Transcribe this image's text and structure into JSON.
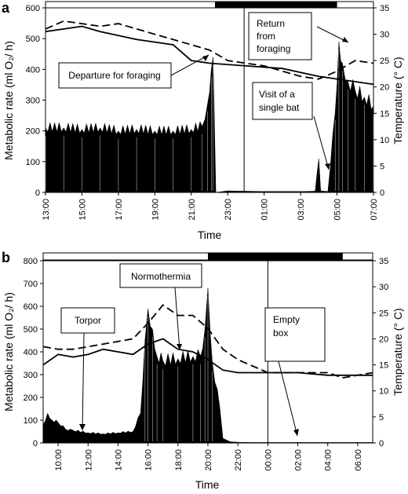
{
  "chart_data": [
    {
      "panel": "a",
      "type": "area",
      "xlabel": "Time",
      "ylabel_left": "Metabolic rate (ml O₂/ h)",
      "ylabel_right": "Temperature (° C)",
      "x_ticks": [
        "13:00",
        "15:00",
        "17:00",
        "19:00",
        "21:00",
        "23:00",
        "01:00",
        "03:00",
        "05:00",
        "07:00"
      ],
      "x_hours": [
        13,
        31
      ],
      "ylim_left": [
        0,
        600
      ],
      "yticks_left": [
        "0",
        "100",
        "200",
        "300",
        "400",
        "500",
        "600"
      ],
      "ylim_right": [
        0,
        35
      ],
      "yticks_right": [
        "0",
        "5",
        "10",
        "15",
        "20",
        "25",
        "30",
        "35"
      ],
      "dark_period": [
        22.3,
        29.0
      ],
      "marker_hour": 23.9,
      "metabolic_rate": [
        [
          13.0,
          210
        ],
        [
          14.0,
          210
        ],
        [
          15.0,
          205
        ],
        [
          16.0,
          210
        ],
        [
          17.0,
          200
        ],
        [
          18.0,
          205
        ],
        [
          19.0,
          200
        ],
        [
          20.0,
          200
        ],
        [
          21.0,
          205
        ],
        [
          21.6,
          215
        ],
        [
          21.9,
          290
        ],
        [
          22.1,
          400
        ],
        [
          22.2,
          440
        ],
        [
          22.35,
          0
        ],
        [
          23.0,
          5
        ],
        [
          24.0,
          4
        ],
        [
          25.0,
          3
        ],
        [
          26.0,
          3
        ],
        [
          27.0,
          3
        ],
        [
          27.8,
          4
        ],
        [
          27.9,
          60
        ],
        [
          28.0,
          110
        ],
        [
          28.1,
          5
        ],
        [
          28.5,
          3
        ],
        [
          28.9,
          260
        ],
        [
          29.1,
          490
        ],
        [
          29.3,
          420
        ],
        [
          29.6,
          360
        ],
        [
          30.0,
          330
        ],
        [
          30.5,
          310
        ],
        [
          31.0,
          280
        ]
      ],
      "series": [
        {
          "name": "",
          "style": "solid",
          "values": [
            [
              13,
              30.5
            ],
            [
              14,
              31
            ],
            [
              15,
              31.5
            ],
            [
              16,
              30.5
            ],
            [
              18,
              29
            ],
            [
              20,
              28
            ],
            [
              21,
              25
            ],
            [
              22,
              24.5
            ],
            [
              24,
              24
            ],
            [
              26,
              23.5
            ],
            [
              28,
              22
            ],
            [
              29,
              21.5
            ],
            [
              30,
              21
            ],
            [
              31,
              20.5
            ]
          ]
        },
        {
          "name": "",
          "style": "dashed",
          "values": [
            [
              13,
              31
            ],
            [
              14,
              32.5
            ],
            [
              15,
              32
            ],
            [
              16,
              31.5
            ],
            [
              17,
              32
            ],
            [
              19,
              30
            ],
            [
              21,
              28
            ],
            [
              22,
              27
            ],
            [
              23,
              25
            ],
            [
              24,
              24.5
            ],
            [
              25,
              24
            ],
            [
              27,
              22
            ],
            [
              28,
              21.5
            ],
            [
              29,
              23
            ],
            [
              30,
              25
            ],
            [
              31,
              24.5
            ]
          ]
        }
      ],
      "annotations": {
        "departure": "Departure for foraging",
        "return_line1": "Return",
        "return_line2": "from",
        "return_line3": "foraging",
        "visit_line1": "Visit of a",
        "visit_line2": "single bat"
      }
    },
    {
      "panel": "b",
      "type": "area",
      "xlabel": "Time",
      "ylabel_left": "Metabolic rate (ml O₂/ h)",
      "ylabel_right": "Temperature (° C)",
      "x_ticks": [
        "10:00",
        "12:00",
        "14:00",
        "16:00",
        "18:00",
        "20:00",
        "22:00",
        "00:00",
        "02:00",
        "04:00",
        "06:00"
      ],
      "x_hours": [
        9,
        31
      ],
      "ylim_left": [
        0,
        800
      ],
      "yticks_left": [
        "0",
        "100",
        "200",
        "300",
        "400",
        "500",
        "600",
        "700",
        "800"
      ],
      "ylim_right": [
        0,
        35
      ],
      "yticks_right": [
        "0",
        "5",
        "10",
        "15",
        "20",
        "25",
        "30",
        "35"
      ],
      "dark_period": [
        20.0,
        29.0
      ],
      "marker_hour": 24.0,
      "metabolic_rate": [
        [
          9.0,
          80
        ],
        [
          9.3,
          130
        ],
        [
          9.6,
          100
        ],
        [
          10.0,
          90
        ],
        [
          10.5,
          60
        ],
        [
          11.0,
          55
        ],
        [
          12.0,
          45
        ],
        [
          13.0,
          40
        ],
        [
          14.0,
          45
        ],
        [
          15.0,
          50
        ],
        [
          15.5,
          130
        ],
        [
          15.8,
          450
        ],
        [
          16.0,
          590
        ],
        [
          16.3,
          500
        ],
        [
          16.6,
          380
        ],
        [
          17.0,
          360
        ],
        [
          18.0,
          370
        ],
        [
          19.0,
          380
        ],
        [
          19.5,
          380
        ],
        [
          19.8,
          500
        ],
        [
          20.0,
          680
        ],
        [
          20.3,
          350
        ],
        [
          20.8,
          150
        ],
        [
          21.0,
          20
        ],
        [
          21.5,
          5
        ],
        [
          22.0,
          3
        ],
        [
          23.0,
          2
        ],
        [
          24.0,
          2
        ],
        [
          26.0,
          2
        ],
        [
          28.0,
          2
        ],
        [
          30.0,
          2
        ],
        [
          31.0,
          2
        ]
      ],
      "series": [
        {
          "name": "",
          "style": "solid",
          "values": [
            [
              9,
              15
            ],
            [
              10,
              17
            ],
            [
              11,
              16.5
            ],
            [
              12,
              17
            ],
            [
              13,
              18
            ],
            [
              14,
              17.5
            ],
            [
              15,
              17
            ],
            [
              16,
              19
            ],
            [
              17,
              20
            ],
            [
              18,
              18
            ],
            [
              19,
              17.5
            ],
            [
              20,
              16
            ],
            [
              21,
              14
            ],
            [
              22,
              13.5
            ],
            [
              24,
              13.5
            ],
            [
              26,
              13.5
            ],
            [
              28,
              13
            ],
            [
              30,
              13
            ],
            [
              31,
              13
            ]
          ]
        },
        {
          "name": "",
          "style": "dashed",
          "values": [
            [
              9,
              18.5
            ],
            [
              10,
              18
            ],
            [
              11,
              18
            ],
            [
              12,
              18.5
            ],
            [
              13,
              19
            ],
            [
              14,
              19.5
            ],
            [
              15,
              20
            ],
            [
              16,
              23
            ],
            [
              17,
              26.5
            ],
            [
              18,
              24.5
            ],
            [
              19,
              24.5
            ],
            [
              20,
              22
            ],
            [
              21,
              18
            ],
            [
              22,
              16
            ],
            [
              24,
              13.5
            ],
            [
              26,
              13.5
            ],
            [
              28,
              13.5
            ],
            [
              29,
              12.5
            ],
            [
              30,
              13
            ],
            [
              31,
              13.5
            ]
          ]
        }
      ],
      "annotations": {
        "torpor": "Torpor",
        "normothermia": "Normothermia",
        "empty_line1": "Empty",
        "empty_line2": "box"
      }
    }
  ]
}
